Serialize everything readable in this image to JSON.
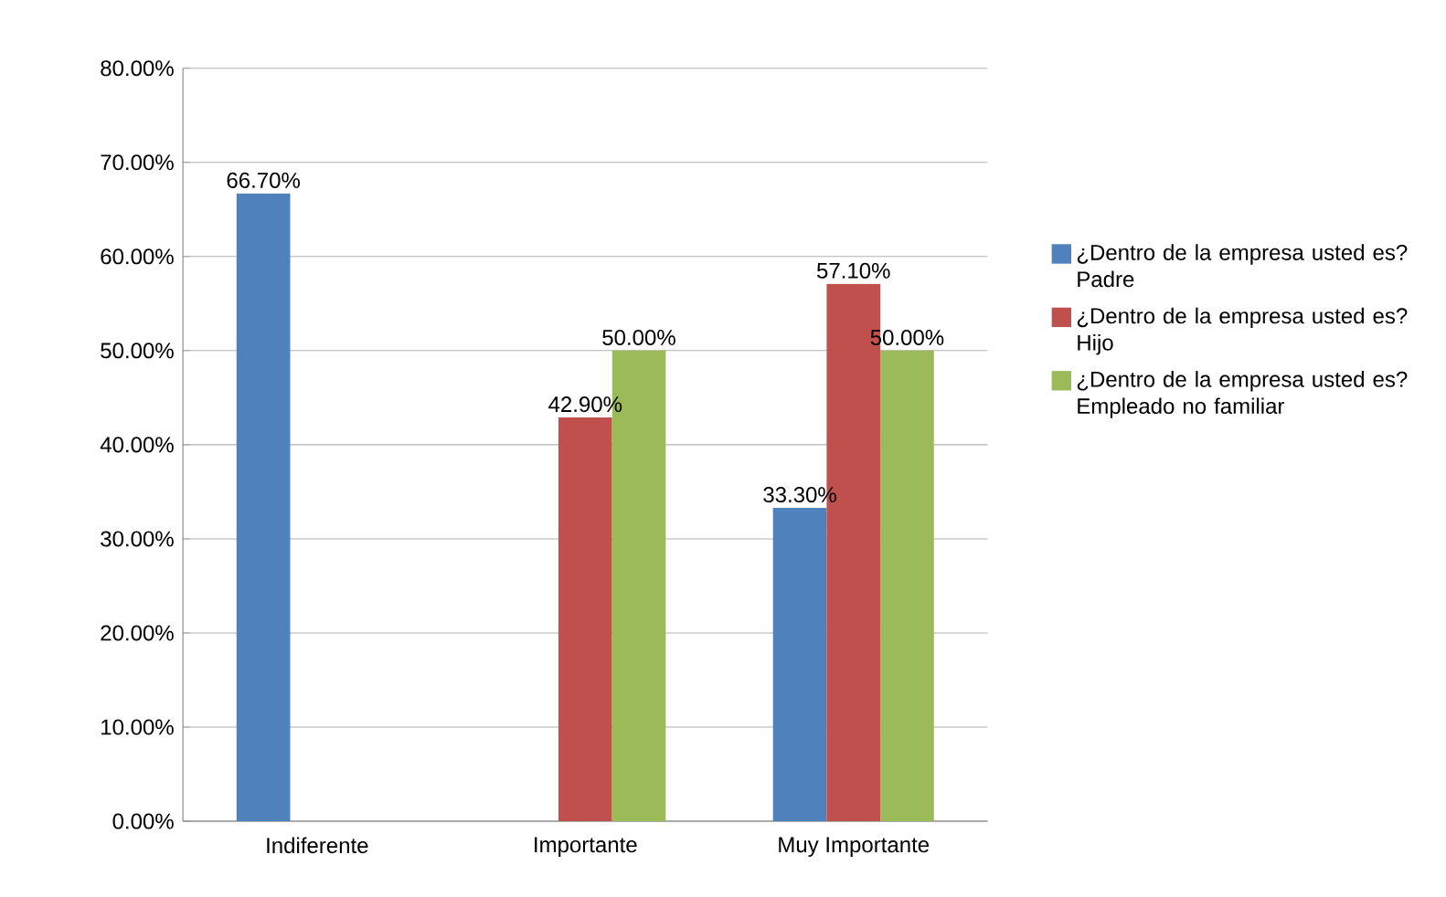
{
  "chart_data": {
    "type": "bar",
    "categories": [
      "Indiferente",
      "Importante",
      "Muy Importante"
    ],
    "series": [
      {
        "name": "¿Dentro de la empresa usted es? Padre",
        "color": "#4f81bd",
        "values": [
          66.7,
          null,
          33.3
        ],
        "value_labels": [
          "66.70%",
          null,
          "33.30%"
        ]
      },
      {
        "name": "¿Dentro de la empresa usted es? Hijo",
        "color": "#c0504d",
        "values": [
          null,
          42.9,
          57.1
        ],
        "value_labels": [
          null,
          "42.90%",
          "57.10%"
        ]
      },
      {
        "name": "¿Dentro de la empresa usted es? Empleado  no familiar",
        "color": "#9bbb59",
        "values": [
          null,
          50,
          50
        ],
        "value_labels": [
          null,
          "50.00%",
          "50.00%"
        ]
      }
    ],
    "ylim": [
      0,
      80
    ],
    "yticks": [
      {
        "value": 0,
        "label": "0.00%"
      },
      {
        "value": 10,
        "label": "10.00%"
      },
      {
        "value": 20,
        "label": "20.00%"
      },
      {
        "value": 30,
        "label": "30.00%"
      },
      {
        "value": 40,
        "label": "40.00%"
      },
      {
        "value": 50,
        "label": "50.00%"
      },
      {
        "value": 60,
        "label": "60.00%"
      },
      {
        "value": 70,
        "label": "70.00%"
      },
      {
        "value": 80,
        "label": "80.00%"
      }
    ],
    "grid": "y",
    "legend": "right"
  }
}
